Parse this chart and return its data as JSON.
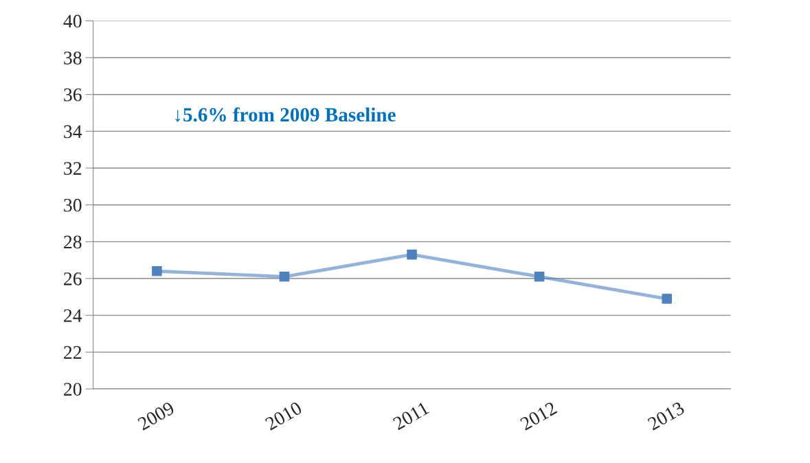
{
  "chart_data": {
    "type": "line",
    "categories": [
      "2009",
      "2010",
      "2011",
      "2012",
      "2013"
    ],
    "series": [
      {
        "color": "#4f81bd",
        "values": [
          26.4,
          26.1,
          27.3,
          26.1,
          24.9
        ]
      }
    ],
    "ylim": [
      20,
      40
    ],
    "yticks": [
      20,
      22,
      24,
      26,
      28,
      30,
      32,
      34,
      36,
      38,
      40
    ],
    "annotations": [
      "↓5.6% from 2009 Baseline"
    ],
    "grid": "y",
    "marker": "square",
    "line_style": "solid",
    "legend": false
  }
}
